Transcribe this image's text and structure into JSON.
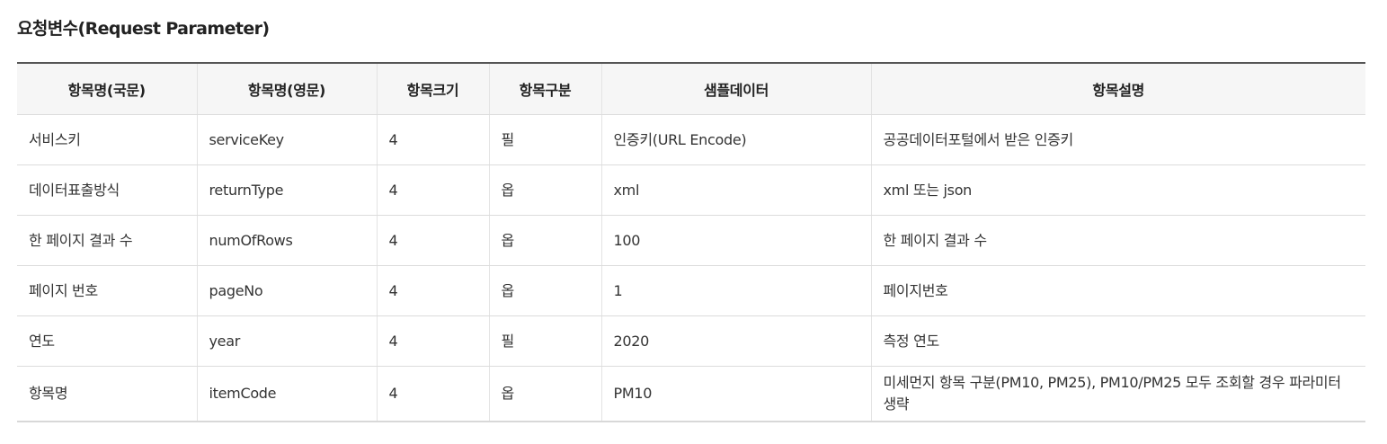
{
  "section": {
    "title": "요청변수(Request Parameter)"
  },
  "table": {
    "headers": [
      "항목명(국문)",
      "항목명(영문)",
      "항목크기",
      "항목구분",
      "샘플데이터",
      "항목설명"
    ],
    "rows": [
      [
        "서비스키",
        "serviceKey",
        "4",
        "필",
        "인증키(URL Encode)",
        "공공데이터포털에서 받은 인증키"
      ],
      [
        "데이터표출방식",
        "returnType",
        "4",
        "옵",
        "xml",
        "xml 또는 json"
      ],
      [
        "한 페이지 결과 수",
        "numOfRows",
        "4",
        "옵",
        "100",
        "한 페이지 결과 수"
      ],
      [
        "페이지 번호",
        "pageNo",
        "4",
        "옵",
        "1",
        "페이지번호"
      ],
      [
        "연도",
        "year",
        "4",
        "필",
        "2020",
        "측정 연도"
      ],
      [
        "항목명",
        "itemCode",
        "4",
        "옵",
        "PM10",
        "미세먼지 항목 구분(PM10, PM25), PM10/PM25 모두 조회할 경우 파라미터 생략"
      ]
    ]
  }
}
